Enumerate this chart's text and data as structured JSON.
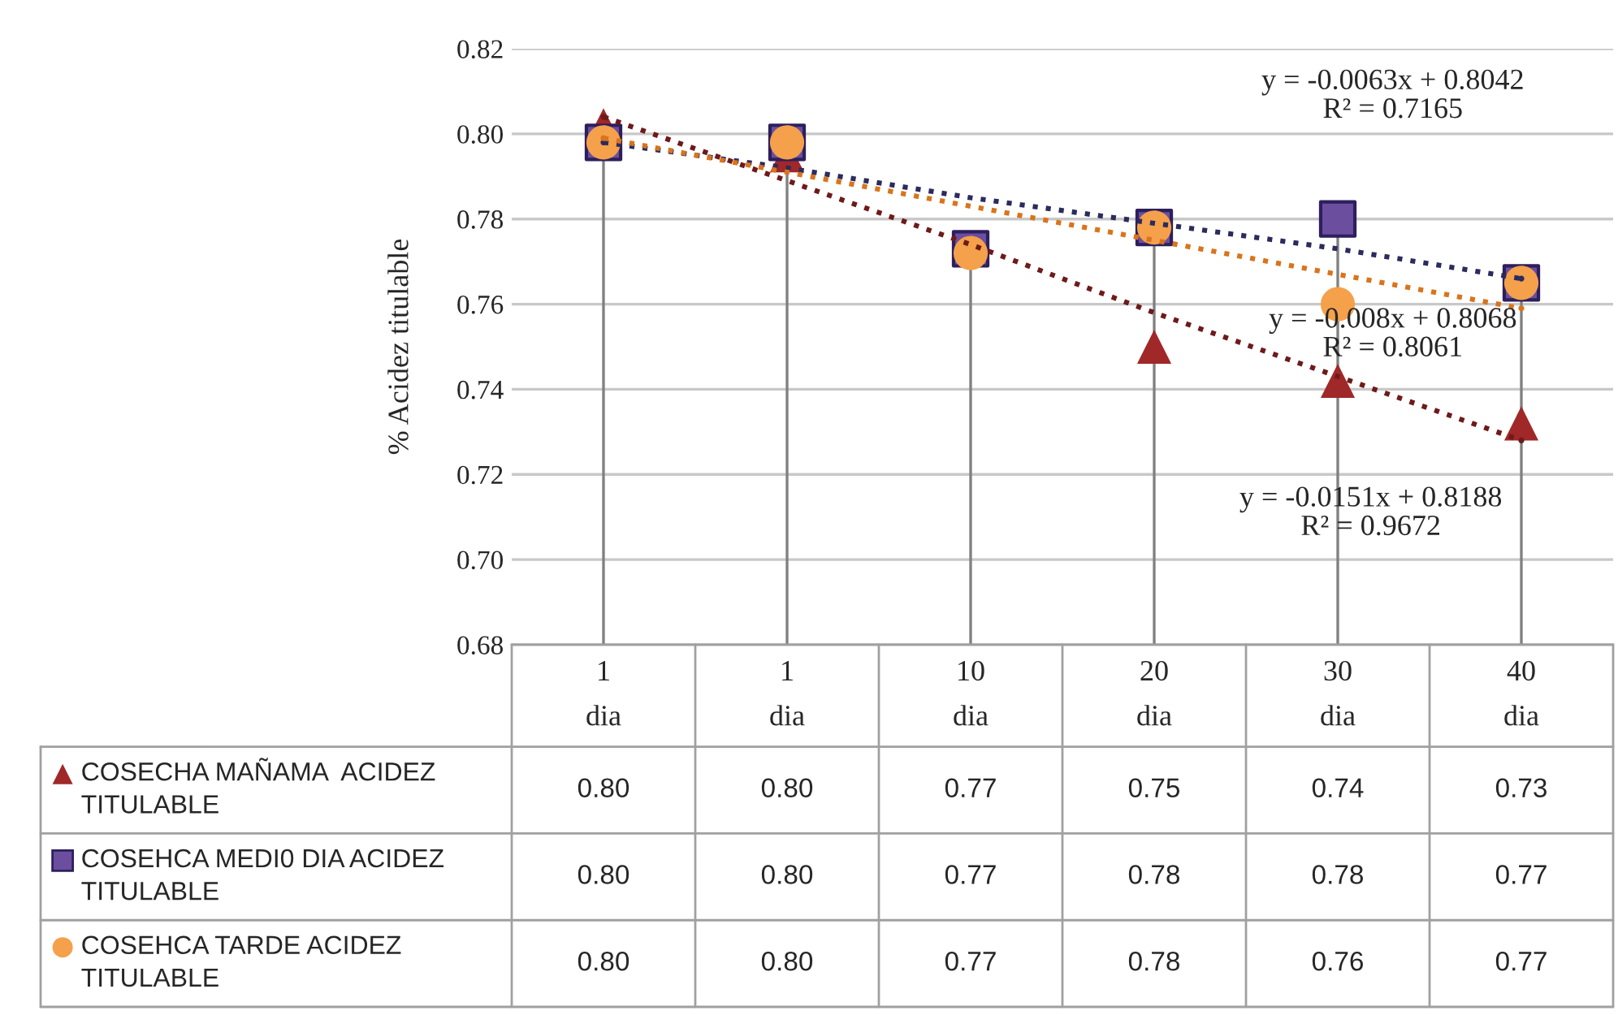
{
  "chart_data": {
    "type": "scatter",
    "ylabel": "% Acidez titulable",
    "categories": [
      "1\ndia",
      "1\ndia",
      "10\ndia",
      "20\ndia",
      "30\ndia",
      "40\ndia"
    ],
    "ylim": [
      0.68,
      0.82
    ],
    "yticks": [
      {
        "value": 0.68,
        "label": "0.68"
      },
      {
        "value": 0.7,
        "label": "0.70"
      },
      {
        "value": 0.72,
        "label": "0.72"
      },
      {
        "value": 0.74,
        "label": "0.74"
      },
      {
        "value": 0.76,
        "label": "0.76"
      },
      {
        "value": 0.78,
        "label": "0.78"
      },
      {
        "value": 0.8,
        "label": "0.80"
      },
      {
        "value": 0.82,
        "label": "0.82"
      }
    ],
    "grid": true,
    "legend": "bottom left",
    "series": [
      {
        "name": "COSECHA MAÑAMA  ACIDEZ TITULABLE",
        "marker": "triangle",
        "color": "#a02828",
        "values": [
          0.802,
          0.795,
          null,
          0.75,
          0.742,
          0.732
        ],
        "value_labels": [
          "0.80",
          "0.80",
          "0.77",
          "0.75",
          "0.74",
          "0.73"
        ]
      },
      {
        "name": "COSEHCA MEDI0 DIA ACIDEZ TITULABLE",
        "marker": "square",
        "color": "#6b4f9e",
        "values": [
          0.798,
          0.798,
          0.773,
          0.778,
          0.78,
          0.765
        ],
        "value_labels": [
          "0.80",
          "0.80",
          "0.77",
          "0.78",
          "0.78",
          "0.77"
        ]
      },
      {
        "name": "COSEHCA TARDE ACIDEZ TITULABLE",
        "marker": "circle",
        "color": "#f5a04a",
        "values": [
          0.798,
          0.798,
          0.772,
          0.778,
          0.76,
          0.765
        ],
        "value_labels": [
          "0.80",
          "0.80",
          "0.77",
          "0.78",
          "0.76",
          "0.77"
        ]
      },
      {
        "type": "line",
        "line_style": "dotted",
        "color": "#6e1a1a",
        "values": [
          0.804,
          0.789,
          0.774,
          0.758,
          0.743,
          0.728
        ]
      },
      {
        "type": "line",
        "line_style": "dotted",
        "color": "#2b2b5e",
        "values": [
          0.798,
          0.792,
          0.785,
          0.779,
          0.773,
          0.766
        ]
      },
      {
        "type": "line",
        "line_style": "dotted",
        "color": "#d9741c",
        "values": [
          0.799,
          0.791,
          0.783,
          0.775,
          0.767,
          0.759
        ]
      }
    ],
    "annotations": [
      "y = -0.0063x + 0.8042\nR² = 0.7165",
      "y = -0.008x + 0.8068\nR² = 0.8061",
      "y = -0.0151x + 0.8188\nR² = 0.9672"
    ]
  }
}
